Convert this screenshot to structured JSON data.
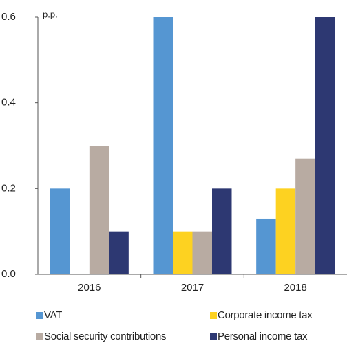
{
  "chart_data": {
    "type": "bar",
    "annotation": "p.p.",
    "categories": [
      "2016",
      "2017",
      "2018"
    ],
    "series": [
      {
        "name": "VAT",
        "color": "#5596d2",
        "values": [
          0.2,
          0.6,
          0.13
        ]
      },
      {
        "name": "Corporate income tax",
        "color": "#fdd221",
        "values": [
          0,
          0.1,
          0.2
        ]
      },
      {
        "name": "Social security contributions",
        "color": "#b8aba2",
        "values": [
          0.3,
          0.1,
          0.27
        ]
      },
      {
        "name": "Personal income tax",
        "color": "#2d3872",
        "values": [
          0.1,
          0.2,
          0.6
        ]
      }
    ],
    "ylim": [
      0,
      0.6
    ],
    "yticks": [
      {
        "value": 0,
        "label": "0.0"
      },
      0.2,
      0.4,
      0.6
    ],
    "grid": false
  }
}
